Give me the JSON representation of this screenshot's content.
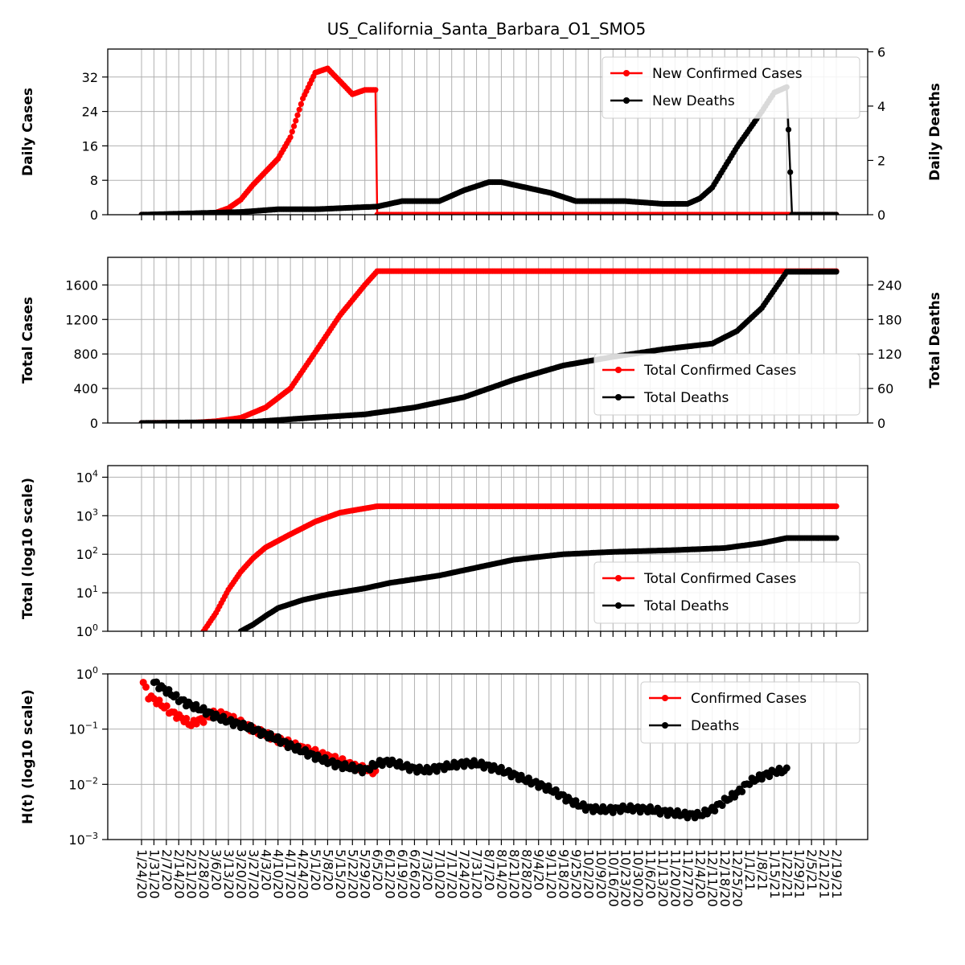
{
  "title": "US_California_Santa_Barbara_O1_SMO5",
  "colors": {
    "cases": "#ff0000",
    "deaths": "#000000",
    "grid": "#b0b0b0"
  },
  "x_dates": [
    "1/24/20",
    "1/31/20",
    "2/7/20",
    "2/14/20",
    "2/21/20",
    "2/28/20",
    "3/6/20",
    "3/13/20",
    "3/20/20",
    "3/27/20",
    "4/3/20",
    "4/10/20",
    "4/17/20",
    "4/24/20",
    "5/1/20",
    "5/8/20",
    "5/15/20",
    "5/22/20",
    "5/29/20",
    "6/5/20",
    "6/12/20",
    "6/19/20",
    "6/26/20",
    "7/3/20",
    "7/10/20",
    "7/17/20",
    "7/24/20",
    "7/31/20",
    "8/7/20",
    "8/14/20",
    "8/21/20",
    "8/28/20",
    "9/4/20",
    "9/11/20",
    "9/18/20",
    "9/25/20",
    "10/2/20",
    "10/9/20",
    "10/16/20",
    "10/23/20",
    "10/30/20",
    "11/6/20",
    "11/13/20",
    "11/20/20",
    "11/27/20",
    "12/4/20",
    "12/11/20",
    "12/18/20",
    "12/25/20",
    "1/1/21",
    "1/8/21",
    "1/15/21",
    "1/22/21",
    "1/29/21",
    "2/5/21",
    "2/12/21",
    "2/19/21"
  ],
  "x_tick_labels": [
    "1/24/20",
    "1/31/20",
    "2/7/20",
    "2/14/20",
    "2/21/20",
    "2/28/20",
    "3/6/20",
    "3/13/20",
    "3/20/20",
    "3/27/20",
    "4/3/20",
    "4/10/20",
    "4/17/20",
    "4/24/20",
    "5/1/20",
    "5/8/20",
    "5/15/20",
    "5/22/20",
    "5/29/20",
    "6/5/20",
    "6/12/20",
    "6/19/20",
    "6/26/20",
    "7/3/20",
    "7/10/20",
    "7/17/20",
    "7/24/20",
    "7/31/20",
    "8/7/20",
    "8/14/20",
    "8/21/20",
    "8/28/20",
    "9/4/20",
    "9/11/20",
    "9/18/20",
    "9/25/20",
    "10/2/20",
    "10/9/20",
    "10/16/20",
    "10/23/20",
    "10/30/20",
    "11/6/20",
    "11/13/20",
    "11/20/20",
    "11/27/20",
    "12/4/20",
    "12/11/20",
    "12/18/20",
    "12/25/20",
    "1/1/21",
    "1/8/21",
    "1/15/21",
    "1/22/21",
    "1/29/21",
    "2/5/21",
    "2/12/21",
    "2/19/21"
  ],
  "chart_data": [
    {
      "type": "line",
      "ylabel": "Daily Cases",
      "y2label": "Daily Deaths",
      "ylim": [
        0,
        38.5
      ],
      "yticks": [
        0,
        8,
        16,
        24,
        32
      ],
      "y2lim": [
        0,
        6.1
      ],
      "y2ticks": [
        0,
        2,
        4,
        6
      ],
      "legend": "top-right",
      "grid": true,
      "series": [
        {
          "name": "New Confirmed Cases",
          "axis": "left",
          "x": [
            "1/24/20",
            "2/28/20",
            "3/6/20",
            "3/13/20",
            "3/20/20",
            "3/27/20",
            "4/3/20",
            "4/10/20",
            "4/17/20",
            "4/24/20",
            "5/1/20",
            "5/8/20",
            "5/15/20",
            "5/22/20",
            "5/29/20",
            "6/1/20",
            "6/4/20",
            "6/5/20",
            "6/12/20",
            "1/22/21",
            "2/19/21"
          ],
          "y": [
            0,
            0,
            0.5,
            1.5,
            3.5,
            7,
            10,
            13,
            18,
            27,
            33,
            34,
            31,
            28,
            29,
            29,
            29,
            0,
            0,
            0,
            0
          ]
        },
        {
          "name": "New Deaths",
          "axis": "right",
          "x": [
            "1/24/20",
            "3/20/20",
            "4/10/20",
            "5/1/20",
            "6/5/20",
            "6/19/20",
            "7/10/20",
            "7/24/20",
            "8/7/20",
            "8/14/20",
            "8/28/20",
            "9/11/20",
            "9/25/20",
            "10/23/20",
            "11/13/20",
            "11/27/20",
            "12/4/20",
            "12/11/20",
            "12/25/20",
            "1/8/21",
            "1/15/21",
            "1/22/21",
            "1/25/21",
            "2/19/21"
          ],
          "y": [
            0,
            0.1,
            0.2,
            0.2,
            0.3,
            0.5,
            0.5,
            0.9,
            1.2,
            1.2,
            1.0,
            0.8,
            0.5,
            0.5,
            0.4,
            0.4,
            0.6,
            1.0,
            2.5,
            3.8,
            4.5,
            4.7,
            0,
            0
          ]
        }
      ]
    },
    {
      "type": "line",
      "ylabel": "Total Cases",
      "y2label": "Total Deaths",
      "ylim": [
        0,
        1920
      ],
      "yticks": [
        0,
        400,
        800,
        1200,
        1600
      ],
      "y2lim": [
        0,
        288
      ],
      "y2ticks": [
        0,
        60,
        120,
        180,
        240
      ],
      "legend": "center-right",
      "grid": true,
      "series": [
        {
          "name": "Total Confirmed Cases",
          "axis": "left",
          "x": [
            "1/24/20",
            "2/21/20",
            "3/6/20",
            "3/20/20",
            "4/3/20",
            "4/17/20",
            "5/1/20",
            "5/15/20",
            "5/29/20",
            "6/5/20",
            "2/19/21"
          ],
          "y": [
            0,
            2,
            20,
            60,
            180,
            400,
            820,
            1250,
            1600,
            1760,
            1760
          ]
        },
        {
          "name": "Total Deaths",
          "axis": "right",
          "x": [
            "1/24/20",
            "3/27/20",
            "4/24/20",
            "5/29/20",
            "6/26/20",
            "7/24/20",
            "8/21/20",
            "9/18/20",
            "10/16/20",
            "11/13/20",
            "12/11/20",
            "12/25/20",
            "1/8/21",
            "1/22/21",
            "2/19/21"
          ],
          "y": [
            0,
            2,
            8,
            15,
            27,
            45,
            75,
            100,
            115,
            128,
            138,
            160,
            200,
            263,
            263
          ]
        }
      ]
    },
    {
      "type": "line",
      "ylabel": "Total (log10 scale)",
      "yscale": "log",
      "ylim": [
        1,
        20000
      ],
      "yticks": [
        1,
        10,
        100,
        1000,
        10000
      ],
      "ytick_labels": [
        "10^0",
        "10^1",
        "10^2",
        "10^3",
        "10^4"
      ],
      "legend": "bottom-right",
      "grid": true,
      "series": [
        {
          "name": "Total Confirmed Cases",
          "x": [
            "2/28/20",
            "3/6/20",
            "3/13/20",
            "3/20/20",
            "3/27/20",
            "4/3/20",
            "4/17/20",
            "5/1/20",
            "5/15/20",
            "6/5/20",
            "2/19/21"
          ],
          "y": [
            1,
            3,
            12,
            35,
            80,
            150,
            330,
            700,
            1200,
            1760,
            1760
          ]
        },
        {
          "name": "Total Deaths",
          "x": [
            "3/20/20",
            "3/27/20",
            "4/3/20",
            "4/10/20",
            "4/24/20",
            "5/8/20",
            "5/29/20",
            "6/12/20",
            "7/10/20",
            "7/31/20",
            "8/21/20",
            "9/18/20",
            "10/16/20",
            "11/20/20",
            "12/18/20",
            "1/8/21",
            "1/22/21",
            "2/19/21"
          ],
          "y": [
            1,
            1.5,
            2.5,
            4,
            6.5,
            9,
            13,
            18,
            28,
            45,
            72,
            100,
            115,
            128,
            145,
            195,
            263,
            263
          ]
        }
      ]
    },
    {
      "type": "scatter",
      "ylabel": "H(t) (log10 scale)",
      "yscale": "log",
      "ylim": [
        0.001,
        1
      ],
      "yticks": [
        0.001,
        0.01,
        0.1,
        1
      ],
      "ytick_labels": [
        "10^−3",
        "10^−2",
        "10^−1",
        "10^0"
      ],
      "legend": "top-right",
      "grid": true,
      "series": [
        {
          "name": "Confirmed Cases",
          "x": [
            "1/25/20",
            "1/28/20",
            "2/3/20",
            "2/10/20",
            "2/17/20",
            "2/21/20",
            "2/24/20",
            "2/28/20",
            "3/6/20",
            "3/13/20",
            "3/20/20",
            "3/27/20",
            "4/3/20",
            "4/10/20",
            "4/17/20",
            "4/24/20",
            "5/1/20",
            "5/8/20",
            "5/15/20",
            "5/22/20",
            "5/29/20",
            "6/4/20"
          ],
          "y": [
            0.7,
            0.4,
            0.3,
            0.2,
            0.15,
            0.12,
            0.14,
            0.15,
            0.2,
            0.17,
            0.13,
            0.1,
            0.08,
            0.065,
            0.055,
            0.045,
            0.038,
            0.032,
            0.027,
            0.022,
            0.019,
            0.017
          ]
        },
        {
          "name": "Deaths",
          "x": [
            "1/31/20",
            "2/7/20",
            "2/14/20",
            "2/21/20",
            "2/28/20",
            "3/6/20",
            "3/13/20",
            "3/20/20",
            "3/27/20",
            "4/3/20",
            "4/10/20",
            "4/17/20",
            "4/24/20",
            "5/1/20",
            "5/8/20",
            "5/15/20",
            "5/22/20",
            "5/29/20",
            "6/5/20",
            "6/12/20",
            "6/19/20",
            "6/26/20",
            "7/3/20",
            "7/10/20",
            "7/17/20",
            "7/24/20",
            "7/31/20",
            "8/7/20",
            "8/14/20",
            "8/21/20",
            "8/28/20",
            "9/4/20",
            "9/11/20",
            "9/18/20",
            "9/25/20",
            "10/2/20",
            "10/9/20",
            "10/16/20",
            "10/23/20",
            "10/30/20",
            "11/6/20",
            "11/13/20",
            "11/20/20",
            "11/27/20",
            "12/4/20",
            "12/11/20",
            "12/18/20",
            "12/25/20",
            "1/1/21",
            "1/8/21",
            "1/15/21",
            "1/22/21"
          ],
          "y": [
            0.7,
            0.5,
            0.35,
            0.27,
            0.22,
            0.17,
            0.14,
            0.12,
            0.1,
            0.08,
            0.065,
            0.05,
            0.04,
            0.032,
            0.026,
            0.022,
            0.02,
            0.018,
            0.024,
            0.026,
            0.022,
            0.019,
            0.018,
            0.02,
            0.022,
            0.024,
            0.024,
            0.021,
            0.018,
            0.015,
            0.012,
            0.01,
            0.008,
            0.006,
            0.0045,
            0.0037,
            0.0035,
            0.0035,
            0.0037,
            0.0036,
            0.0035,
            0.0032,
            0.003,
            0.0028,
            0.0028,
            0.0035,
            0.005,
            0.007,
            0.011,
            0.014,
            0.017,
            0.018
          ]
        }
      ]
    }
  ]
}
